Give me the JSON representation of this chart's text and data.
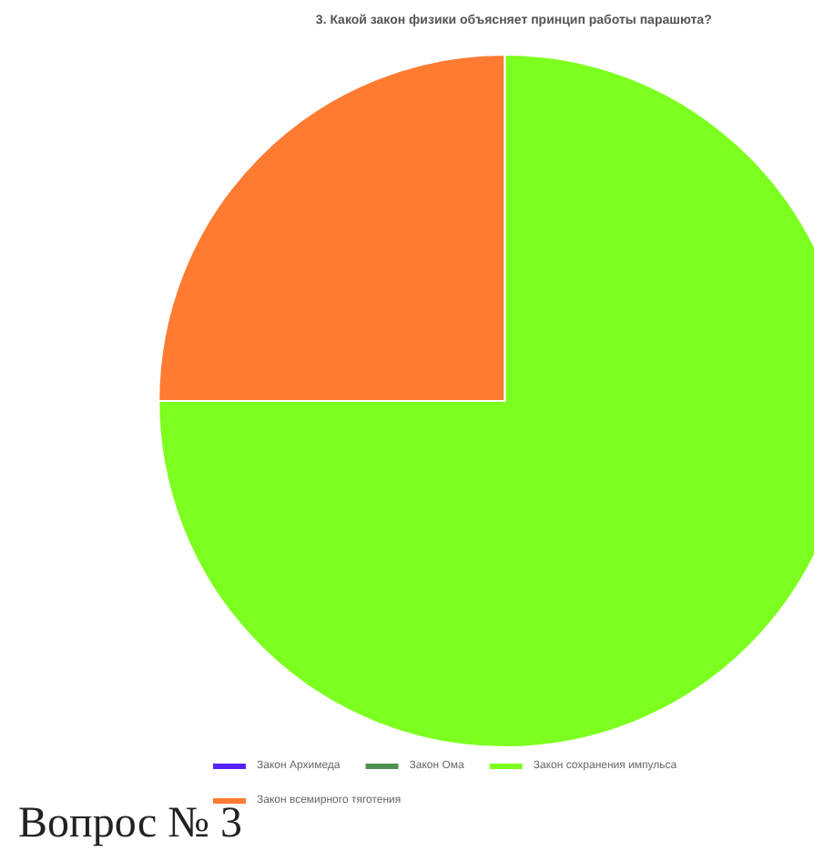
{
  "chart_data": {
    "type": "pie",
    "title": "3. Какой закон физики объясняет принцип работы парашюта?",
    "categories": [
      "Закон Архимеда",
      "Закон Ома",
      "Закон сохранения импульса",
      "Закон всемирного тяготения"
    ],
    "values": [
      0,
      0,
      75,
      25
    ],
    "colors": [
      "#5522ff",
      "#4e8f52",
      "#7cff1f",
      "#ff7b32"
    ],
    "legend": "bottom",
    "annotations": [
      "Вопрос № 3"
    ]
  }
}
